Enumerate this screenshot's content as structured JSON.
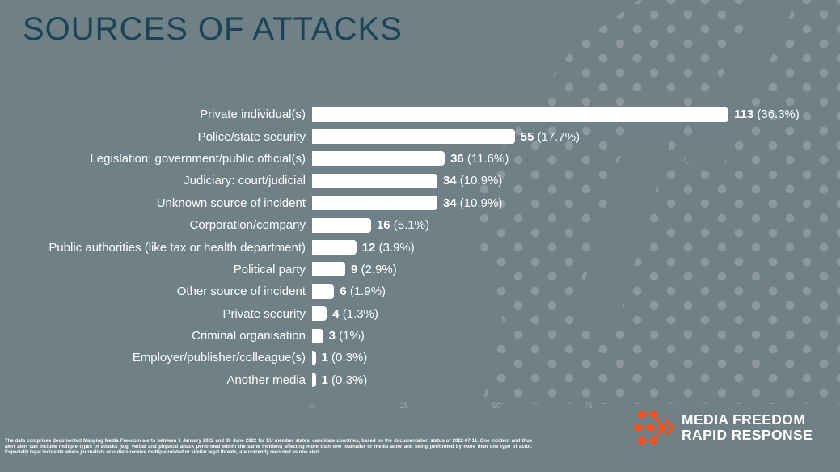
{
  "title": "SOURCES OF ATTACKS",
  "chart_data": {
    "type": "bar",
    "orientation": "horizontal",
    "title": "SOURCES OF ATTACKS",
    "categories": [
      "Private individual(s)",
      "Police/state security",
      "Legislation: government/public official(s)",
      "Judiciary: court/judicial",
      "Unknown source of incident",
      "Corporation/company",
      "Public authorities (like tax or health department)",
      "Political party",
      "Other source of incident",
      "Private security",
      "Criminal organisation",
      "Employer/publisher/colleague(s)",
      "Another media"
    ],
    "values": [
      113,
      55,
      36,
      34,
      34,
      16,
      12,
      9,
      6,
      4,
      3,
      1,
      1
    ],
    "percentages": [
      "36.3%",
      "17.7%",
      "11.6%",
      "10.9%",
      "10.9%",
      "5.1%",
      "3.9%",
      "2.9%",
      "1.9%",
      "1.3%",
      "1%",
      "0.3%",
      "0.3%"
    ],
    "value_label_format": "{value} ({pct})",
    "x_ticks": [
      0,
      25,
      50,
      75
    ],
    "xlim": [
      0,
      116
    ],
    "bar_color": "#ffffff",
    "legend": "none",
    "grid": "off"
  },
  "footer": {
    "disclaimer": "The data comprises documented Mapping Media Freedom alerts between 1 January 2022 and 30 June 2022 for EU member states, candidate countries, based on the documentation status of 2022-07-11. One incident and thus alert alert can include multiple types of attacks (e.g. verbal and physical attack performed within the same incident) affecting more than one journalist or media actor and being performed by more than one type of actor. Especially legal incidents where journalists or outlets receive multiple related or similar legal threats, are currently recorded as one alert."
  },
  "logo": {
    "line1": "MEDIA FREEDOM",
    "line2": "RAPID RESPONSE",
    "icon": "mfrr-network-arrow-icon"
  },
  "colors": {
    "background": "#6f8086",
    "halftone_dots": "#8c989d",
    "title": "#1b4556",
    "bar": "#ffffff",
    "text": "#ffffff",
    "logo_accent": "#f05323"
  }
}
